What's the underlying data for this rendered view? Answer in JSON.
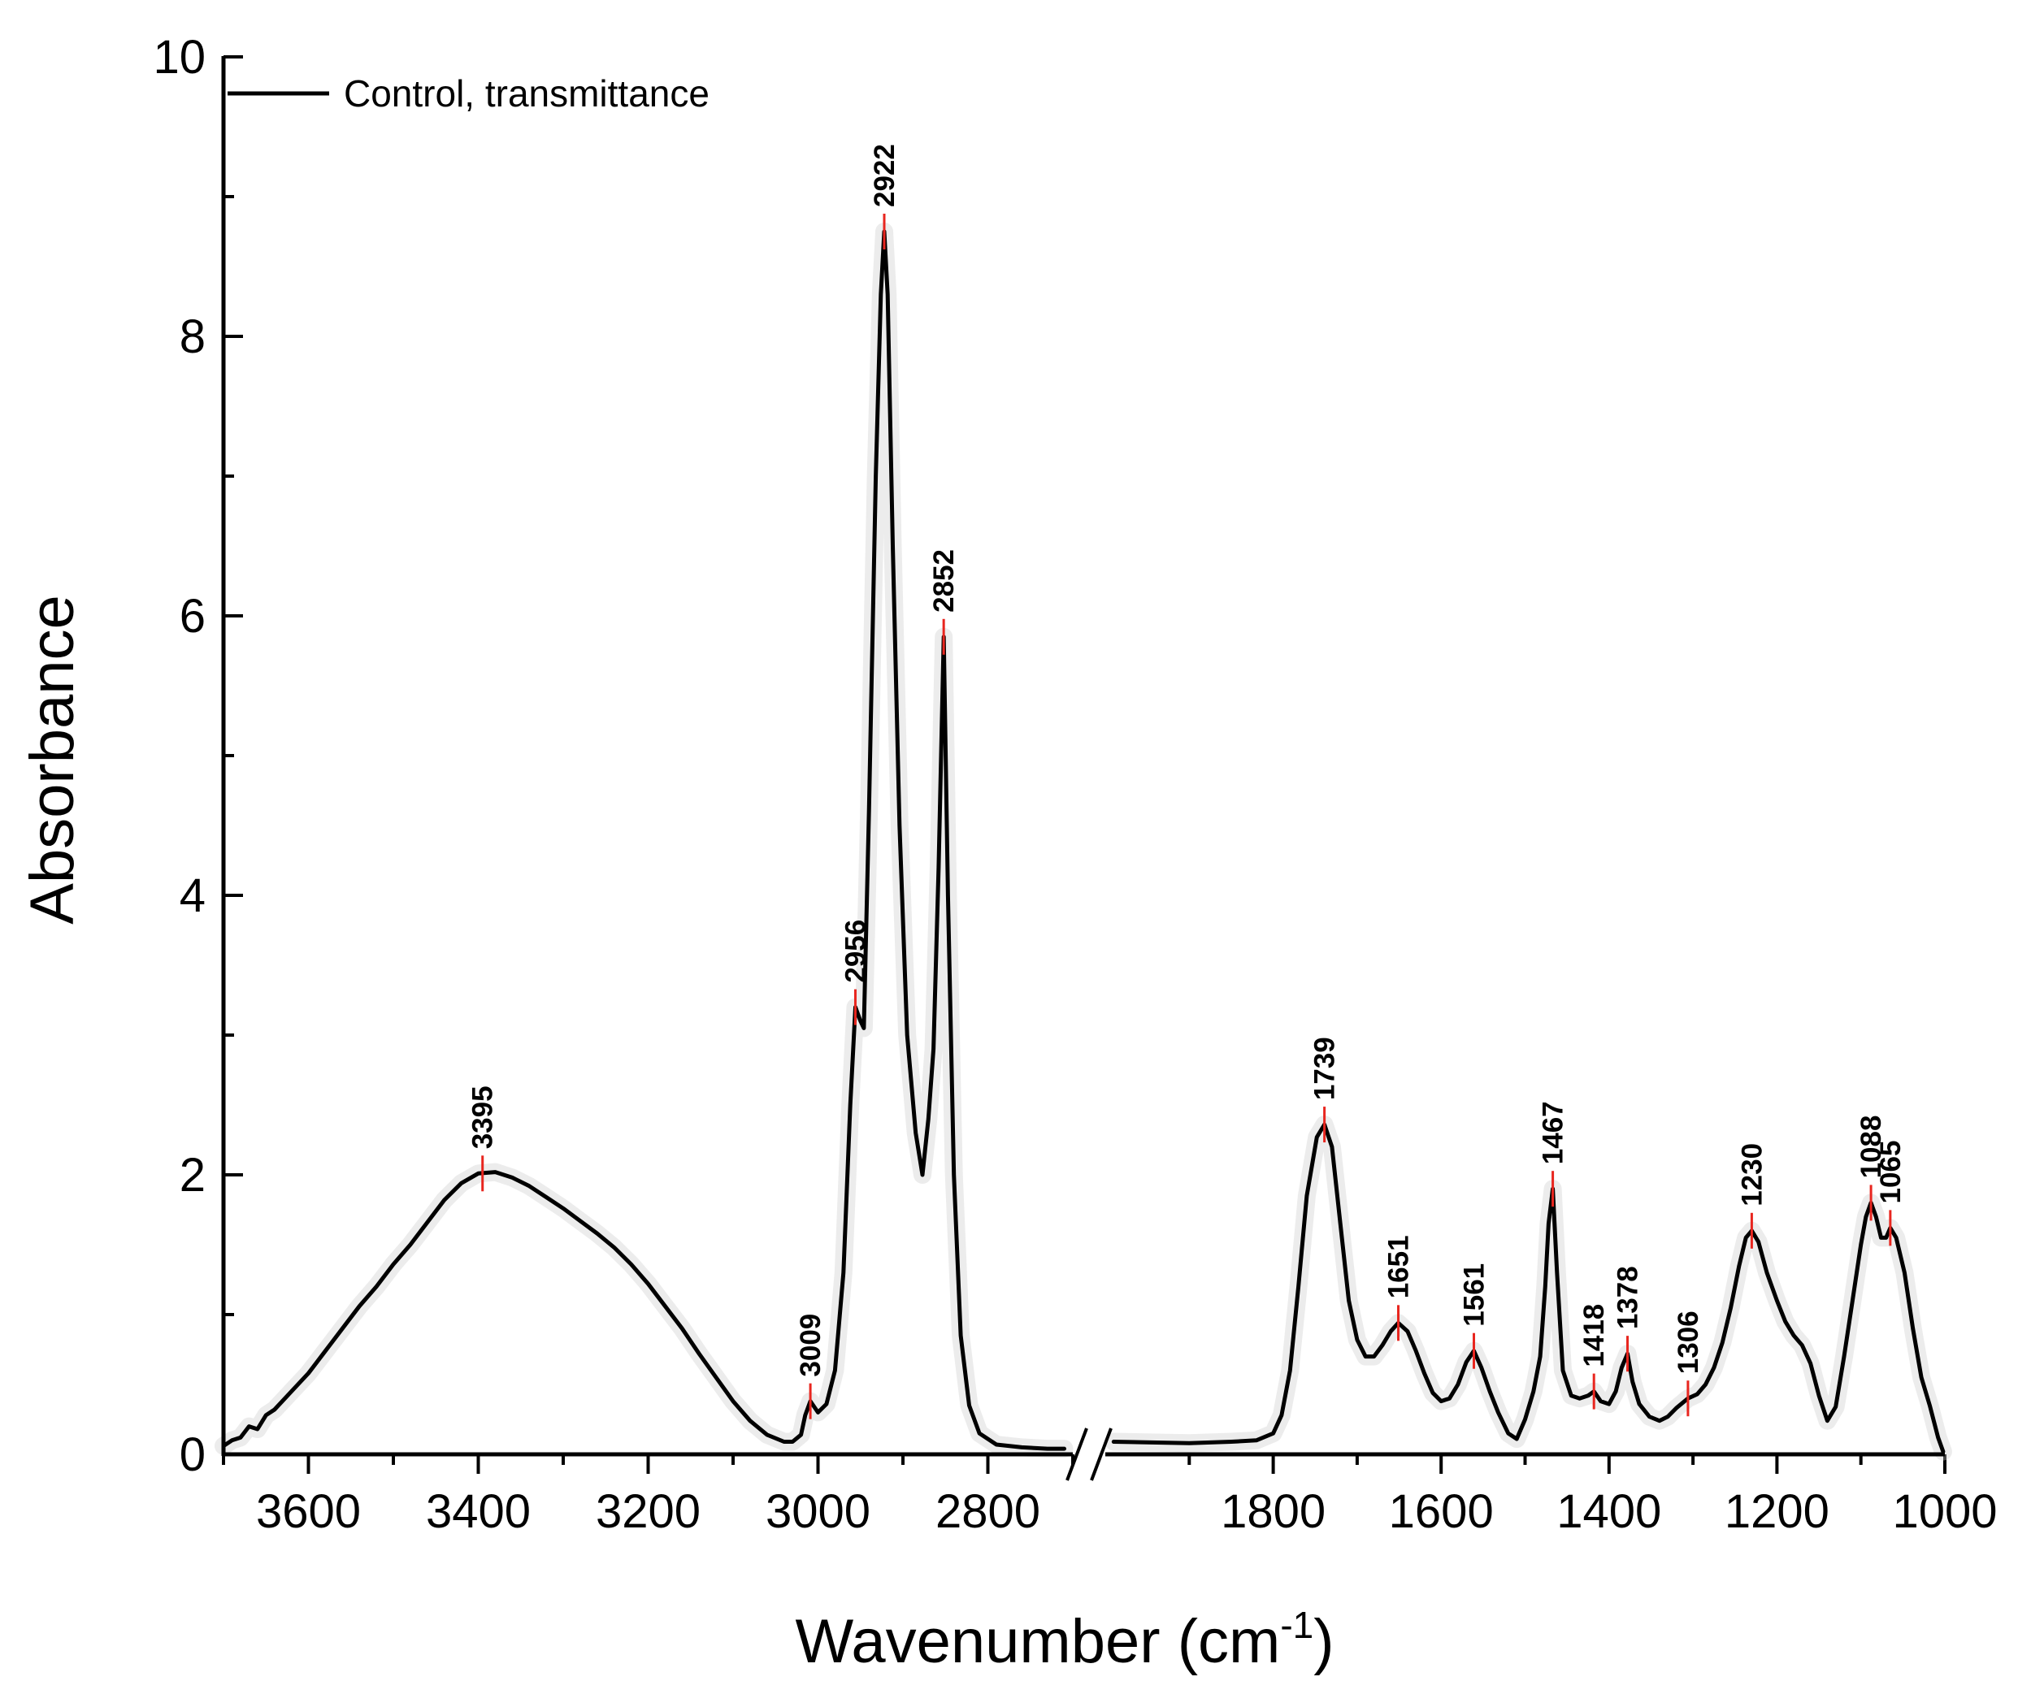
{
  "chart_data": {
    "type": "line",
    "title": "",
    "xlabel": "Wavenumber (cm",
    "xlabel_sup": "-1",
    "xlabel_close": ")",
    "ylabel": "Absorbance",
    "ylim": [
      0,
      10
    ],
    "y_ticks": [
      "0",
      "2",
      "4",
      "6",
      "8",
      "10"
    ],
    "x_axis_broken": true,
    "x_segments": [
      {
        "range": [
          3700,
          2700
        ],
        "ticks": [
          "3600",
          "3400",
          "3200",
          "3000",
          "2800"
        ]
      },
      {
        "range": [
          2000,
          1000
        ],
        "ticks": [
          "1800",
          "1600",
          "1400",
          "1200",
          "1000"
        ]
      }
    ],
    "legend": {
      "position": "top-left",
      "entries": [
        "Control, transmittance"
      ]
    },
    "colors": {
      "line": "#000000",
      "peak_marker": "#e8261f",
      "band": "#c8c8c8"
    },
    "series": [
      {
        "name": "Control, transmittance",
        "segments": [
          [
            [
              3700,
              0.06
            ],
            [
              3690,
              0.1
            ],
            [
              3680,
              0.12
            ],
            [
              3670,
              0.2
            ],
            [
              3660,
              0.18
            ],
            [
              3650,
              0.28
            ],
            [
              3640,
              0.32
            ],
            [
              3620,
              0.45
            ],
            [
              3600,
              0.58
            ],
            [
              3580,
              0.74
            ],
            [
              3560,
              0.9
            ],
            [
              3540,
              1.06
            ],
            [
              3520,
              1.2
            ],
            [
              3500,
              1.36
            ],
            [
              3480,
              1.5
            ],
            [
              3460,
              1.66
            ],
            [
              3440,
              1.82
            ],
            [
              3420,
              1.94
            ],
            [
              3400,
              2.01
            ],
            [
              3380,
              2.02
            ],
            [
              3360,
              1.98
            ],
            [
              3340,
              1.92
            ],
            [
              3320,
              1.84
            ],
            [
              3300,
              1.76
            ],
            [
              3280,
              1.67
            ],
            [
              3260,
              1.58
            ],
            [
              3240,
              1.48
            ],
            [
              3220,
              1.36
            ],
            [
              3200,
              1.22
            ],
            [
              3180,
              1.06
            ],
            [
              3160,
              0.9
            ],
            [
              3140,
              0.72
            ],
            [
              3120,
              0.55
            ],
            [
              3100,
              0.38
            ],
            [
              3080,
              0.24
            ],
            [
              3060,
              0.14
            ],
            [
              3040,
              0.09
            ],
            [
              3030,
              0.09
            ],
            [
              3020,
              0.14
            ],
            [
              3015,
              0.28
            ],
            [
              3009,
              0.38
            ],
            [
              3000,
              0.3
            ],
            [
              2990,
              0.36
            ],
            [
              2980,
              0.6
            ],
            [
              2970,
              1.3
            ],
            [
              2962,
              2.5
            ],
            [
              2956,
              3.2
            ],
            [
              2950,
              3.1
            ],
            [
              2946,
              3.05
            ],
            [
              2940,
              4.6
            ],
            [
              2932,
              7.0
            ],
            [
              2926,
              8.3
            ],
            [
              2922,
              8.75
            ],
            [
              2918,
              8.3
            ],
            [
              2912,
              6.5
            ],
            [
              2904,
              4.5
            ],
            [
              2895,
              3.0
            ],
            [
              2885,
              2.3
            ],
            [
              2877,
              2.0
            ],
            [
              2870,
              2.4
            ],
            [
              2864,
              2.9
            ],
            [
              2858,
              4.2
            ],
            [
              2852,
              5.85
            ],
            [
              2847,
              4.0
            ],
            [
              2840,
              2.0
            ],
            [
              2832,
              0.85
            ],
            [
              2822,
              0.35
            ],
            [
              2810,
              0.15
            ],
            [
              2790,
              0.07
            ],
            [
              2760,
              0.05
            ],
            [
              2730,
              0.04
            ],
            [
              2710,
              0.04
            ]
          ],
          [
            [
              1990,
              0.09
            ],
            [
              1900,
              0.08
            ],
            [
              1850,
              0.09
            ],
            [
              1820,
              0.1
            ],
            [
              1800,
              0.15
            ],
            [
              1790,
              0.28
            ],
            [
              1780,
              0.6
            ],
            [
              1770,
              1.2
            ],
            [
              1760,
              1.85
            ],
            [
              1748,
              2.27
            ],
            [
              1739,
              2.36
            ],
            [
              1730,
              2.2
            ],
            [
              1720,
              1.65
            ],
            [
              1710,
              1.1
            ],
            [
              1700,
              0.82
            ],
            [
              1690,
              0.7
            ],
            [
              1680,
              0.7
            ],
            [
              1670,
              0.78
            ],
            [
              1660,
              0.88
            ],
            [
              1651,
              0.94
            ],
            [
              1640,
              0.88
            ],
            [
              1630,
              0.74
            ],
            [
              1620,
              0.58
            ],
            [
              1610,
              0.44
            ],
            [
              1600,
              0.38
            ],
            [
              1590,
              0.4
            ],
            [
              1580,
              0.5
            ],
            [
              1570,
              0.66
            ],
            [
              1561,
              0.74
            ],
            [
              1552,
              0.62
            ],
            [
              1542,
              0.45
            ],
            [
              1532,
              0.3
            ],
            [
              1520,
              0.15
            ],
            [
              1510,
              0.11
            ],
            [
              1500,
              0.25
            ],
            [
              1490,
              0.45
            ],
            [
              1482,
              0.7
            ],
            [
              1476,
              1.2
            ],
            [
              1472,
              1.65
            ],
            [
              1467,
              1.9
            ],
            [
              1462,
              1.3
            ],
            [
              1455,
              0.6
            ],
            [
              1445,
              0.42
            ],
            [
              1435,
              0.4
            ],
            [
              1425,
              0.42
            ],
            [
              1418,
              0.45
            ],
            [
              1410,
              0.38
            ],
            [
              1400,
              0.36
            ],
            [
              1392,
              0.45
            ],
            [
              1385,
              0.62
            ],
            [
              1378,
              0.72
            ],
            [
              1372,
              0.52
            ],
            [
              1364,
              0.36
            ],
            [
              1352,
              0.27
            ],
            [
              1340,
              0.24
            ],
            [
              1330,
              0.27
            ],
            [
              1320,
              0.33
            ],
            [
              1306,
              0.4
            ],
            [
              1295,
              0.43
            ],
            [
              1285,
              0.5
            ],
            [
              1275,
              0.62
            ],
            [
              1265,
              0.8
            ],
            [
              1255,
              1.05
            ],
            [
              1245,
              1.35
            ],
            [
              1237,
              1.55
            ],
            [
              1230,
              1.6
            ],
            [
              1222,
              1.52
            ],
            [
              1212,
              1.3
            ],
            [
              1200,
              1.1
            ],
            [
              1190,
              0.95
            ],
            [
              1180,
              0.85
            ],
            [
              1170,
              0.78
            ],
            [
              1160,
              0.65
            ],
            [
              1150,
              0.42
            ],
            [
              1140,
              0.24
            ],
            [
              1130,
              0.34
            ],
            [
              1120,
              0.7
            ],
            [
              1110,
              1.1
            ],
            [
              1100,
              1.5
            ],
            [
              1094,
              1.7
            ],
            [
              1088,
              1.8
            ],
            [
              1082,
              1.7
            ],
            [
              1076,
              1.55
            ],
            [
              1070,
              1.55
            ],
            [
              1065,
              1.62
            ],
            [
              1058,
              1.55
            ],
            [
              1048,
              1.3
            ],
            [
              1038,
              0.9
            ],
            [
              1028,
              0.55
            ],
            [
              1018,
              0.35
            ],
            [
              1008,
              0.12
            ],
            [
              1002,
              0.02
            ]
          ]
        ]
      }
    ],
    "peaks": [
      {
        "x": 3395,
        "y": 2.01,
        "label": "3395"
      },
      {
        "x": 3009,
        "y": 0.38,
        "label": "3009"
      },
      {
        "x": 2956,
        "y": 3.2,
        "label": "2956"
      },
      {
        "x": 2922,
        "y": 8.75,
        "label": "2922"
      },
      {
        "x": 2852,
        "y": 5.85,
        "label": "2852"
      },
      {
        "x": 1739,
        "y": 2.36,
        "label": "1739"
      },
      {
        "x": 1651,
        "y": 0.94,
        "label": "1651"
      },
      {
        "x": 1561,
        "y": 0.74,
        "label": "1561"
      },
      {
        "x": 1467,
        "y": 1.9,
        "label": "1467"
      },
      {
        "x": 1418,
        "y": 0.45,
        "label": "1418"
      },
      {
        "x": 1378,
        "y": 0.72,
        "label": "1378"
      },
      {
        "x": 1306,
        "y": 0.4,
        "label": "1306"
      },
      {
        "x": 1230,
        "y": 1.6,
        "label": "1230"
      },
      {
        "x": 1088,
        "y": 1.8,
        "label": "1088"
      },
      {
        "x": 1065,
        "y": 1.62,
        "label": "1065"
      }
    ]
  }
}
